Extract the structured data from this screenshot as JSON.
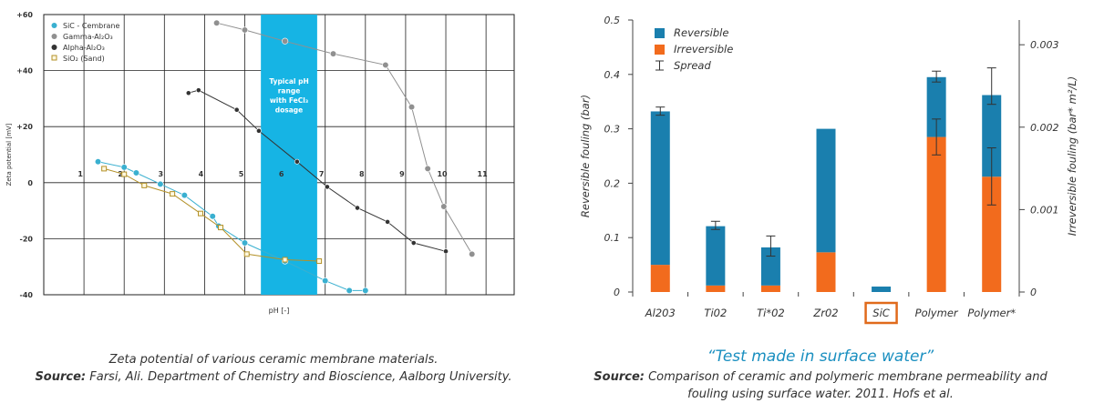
{
  "left_chart": {
    "chart_data": {
      "type": "scatter",
      "ylabel": "Zeta potential [mV]",
      "xlabel": "pH [-]",
      "xlim": [
        0,
        11.7
      ],
      "ylim": [
        -40,
        60
      ],
      "y_ticks": [
        {
          "value": 60,
          "label": "+60"
        },
        {
          "value": 40,
          "label": "+40"
        },
        {
          "value": 20,
          "label": "+20"
        },
        {
          "value": 0,
          "label": "0"
        },
        {
          "value": -20,
          "label": "-20"
        },
        {
          "value": -40,
          "label": "-40"
        }
      ],
      "x_ticks": [
        {
          "value": 1,
          "label": "1"
        },
        {
          "value": 2,
          "label": "2"
        },
        {
          "value": 3,
          "label": "3"
        },
        {
          "value": 4,
          "label": "4"
        },
        {
          "value": 5,
          "label": "5"
        },
        {
          "value": 6,
          "label": "6"
        },
        {
          "value": 7,
          "label": "7"
        },
        {
          "value": 8,
          "label": "8"
        },
        {
          "value": 9,
          "label": "9"
        },
        {
          "value": 10,
          "label": "10"
        },
        {
          "value": 11,
          "label": "11"
        }
      ],
      "grid": true,
      "legend_position": "top-left",
      "band": {
        "x_range": [
          5.4,
          6.8
        ],
        "label": "Typical pH range with FeCl₃ dosage",
        "color": "#16b4e4"
      },
      "series": [
        {
          "name": "SiC - Cembrane",
          "color": "#3ab0d0",
          "marker": "circle-filled",
          "x": [
            1.35,
            2.0,
            2.3,
            2.9,
            3.5,
            4.2,
            4.35,
            5.0,
            6.0,
            7.0,
            7.6,
            8.0
          ],
          "y": [
            7.5,
            5.5,
            3.5,
            -0.5,
            -4.5,
            -12,
            -15.5,
            -21.5,
            -28,
            -35,
            -38.5,
            -38.5
          ]
        },
        {
          "name": "Gamma-Al₂O₃",
          "color": "#909090",
          "marker": "circle-filled",
          "x": [
            4.3,
            5.0,
            6.0,
            7.2,
            8.5,
            9.15,
            9.55,
            9.95,
            10.65
          ],
          "y": [
            57,
            54.5,
            50.5,
            46,
            42,
            27,
            5,
            -8.5,
            -25.5
          ]
        },
        {
          "name": "Alpha-Al₂O₃",
          "color": "#333333",
          "marker": "circle-filled",
          "x": [
            3.6,
            3.85,
            4.8,
            5.35,
            6.3,
            7.05,
            7.8,
            8.55,
            9.2,
            10.0
          ],
          "y": [
            32,
            33,
            26,
            18.5,
            7.5,
            -1.5,
            -9,
            -14,
            -21.5,
            -24.5
          ]
        },
        {
          "name": "SiO₂ (Sand)",
          "color": "#b39128",
          "marker": "square-open",
          "x": [
            1.5,
            2.0,
            2.5,
            3.2,
            3.9,
            4.4,
            5.05,
            6.0,
            6.85
          ],
          "y": [
            5,
            3,
            -1,
            -4,
            -11,
            -16,
            -25.5,
            -27.5,
            -28
          ]
        }
      ]
    },
    "caption_line1": "Zeta potential of various ceramic membrane materials.",
    "caption_source_label": "Source:",
    "caption_source_text": "Farsi, Ali. Department of Chemistry and Bioscience, Aalborg University."
  },
  "right_chart": {
    "chart_data": {
      "type": "bar",
      "stacked": true,
      "categories": [
        "Al203",
        "Ti02",
        "Ti*02",
        "Zr02",
        "SiC",
        "Polymer",
        "Polymer*"
      ],
      "highlight_category": "SiC",
      "highlight_color": "#e06a1b",
      "ylabel": "Reversible fouling (bar)",
      "ylabel2": "Irreversible fouling (bar* m²/L)",
      "ylim": [
        0,
        0.5
      ],
      "ylim2": [
        0,
        0.0033
      ],
      "y_ticks": [
        "0",
        "0.1",
        "0.2",
        "0.3",
        "0.4",
        "0.5"
      ],
      "y2_ticks": [
        {
          "value": 0,
          "label": "0"
        },
        {
          "value": 0.001,
          "label": "0.001"
        },
        {
          "value": 0.002,
          "label": "0.002"
        },
        {
          "value": 0.003,
          "label": "0.003"
        }
      ],
      "legend_position": "top-left",
      "legend": [
        {
          "name": "Reversible",
          "color": "#1a7fae",
          "kind": "swatch"
        },
        {
          "name": "Irreversible",
          "color": "#f26b1d",
          "kind": "swatch"
        },
        {
          "name": "Spread",
          "color": "#333333",
          "kind": "errorbar"
        }
      ],
      "series": [
        {
          "name": "Irreversible",
          "color": "#f26b1d",
          "values": [
            0.05,
            0.012,
            0.012,
            0.073,
            0.0,
            0.285,
            0.212
          ]
        },
        {
          "name": "Reversible",
          "color": "#1a7fae",
          "values": [
            0.282,
            0.109,
            0.07,
            0.227,
            0.01,
            0.11,
            0.15
          ]
        }
      ],
      "errors": [
        {
          "category": "Al203",
          "center": 0.332,
          "low": 0.325,
          "high": 0.34
        },
        {
          "category": "Ti02",
          "center": 0.121,
          "low": 0.115,
          "high": 0.13
        },
        {
          "category": "Ti*02",
          "center": 0.082,
          "low": 0.066,
          "high": 0.103
        },
        {
          "category": "Polymer",
          "center": 0.395,
          "low": 0.386,
          "high": 0.406
        },
        {
          "category": "Polymer",
          "center": 0.285,
          "low": 0.252,
          "high": 0.318
        },
        {
          "category": "Polymer*",
          "center": 0.362,
          "low": 0.345,
          "high": 0.412
        },
        {
          "category": "Polymer*",
          "center": 0.212,
          "low": 0.16,
          "high": 0.265
        }
      ]
    },
    "quote": "“Test made in surface water”",
    "caption_source_label": "Source:",
    "caption_source_text": "Comparison of ceramic and polymeric membrane permeability and fouling using surface water. 2011. Hofs et al."
  }
}
